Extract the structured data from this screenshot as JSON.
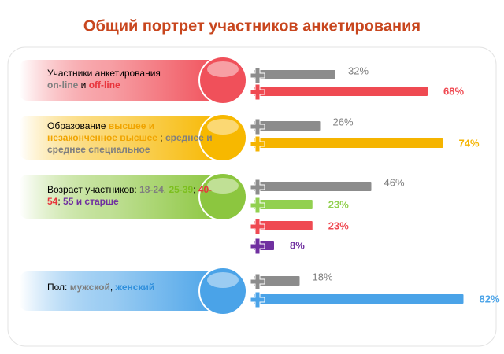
{
  "title": "Общий портрет участников анкетирования",
  "groups": [
    {
      "color": "#f0505a",
      "label": [
        {
          "text": "Участники анкетирования",
          "color": "#000000"
        },
        {
          "text": "on-line",
          "color": "#7f7f7f"
        },
        {
          "text": " и ",
          "color": "#000000"
        },
        {
          "text": "off-line",
          "color": "#e8353d"
        }
      ],
      "bars": [
        {
          "value": 32,
          "value_label": "32%",
          "color": "#8c8c8c"
        },
        {
          "value": 68,
          "value_label": "68%",
          "color": "#ef4a52"
        }
      ]
    },
    {
      "color": "#f7b800",
      "label": [
        {
          "text": "Образование ",
          "color": "#000000"
        },
        {
          "text": "высшее и незаконченное высшее",
          "color": "#f0a400"
        },
        {
          "text": " ; ",
          "color": "#000000"
        },
        {
          "text": "среднее и среднее специальное",
          "color": "#7f7f7f"
        }
      ],
      "bars": [
        {
          "value": 26,
          "value_label": "26%",
          "color": "#8c8c8c"
        },
        {
          "value": 74,
          "value_label": "74%",
          "color": "#f5b400"
        }
      ]
    },
    {
      "color": "#8cc63f",
      "label": [
        {
          "text": "Возраст участников: ",
          "color": "#000000"
        },
        {
          "text": "18-24",
          "color": "#7f7f7f"
        },
        {
          "text": ", ",
          "color": "#000000"
        },
        {
          "text": "25-39",
          "color": "#7cbf1e"
        },
        {
          "text": "; ",
          "color": "#000000"
        },
        {
          "text": "40-54",
          "color": "#e8353d"
        },
        {
          "text": "; ",
          "color": "#000000"
        },
        {
          "text": "55 и старше",
          "color": "#7030a0"
        }
      ],
      "bars": [
        {
          "value": 46,
          "value_label": "46%",
          "color": "#8c8c8c"
        },
        {
          "value": 23,
          "value_label": "23%",
          "color": "#92d050"
        },
        {
          "value": 23,
          "value_label": "23%",
          "color": "#ef4a52"
        },
        {
          "value": 8,
          "value_label": "8%",
          "color": "#7030a0"
        }
      ]
    },
    {
      "color": "#4aa3e8",
      "label": [
        {
          "text": "Пол: ",
          "color": "#000000"
        },
        {
          "text": "мужской",
          "color": "#7f7f7f"
        },
        {
          "text": ", ",
          "color": "#000000"
        },
        {
          "text": "женский",
          "color": "#2f8fdc"
        }
      ],
      "bars": [
        {
          "value": 18,
          "value_label": "18%",
          "color": "#8c8c8c"
        },
        {
          "value": 82,
          "value_label": "82%",
          "color": "#4aa3e8"
        }
      ]
    }
  ]
}
